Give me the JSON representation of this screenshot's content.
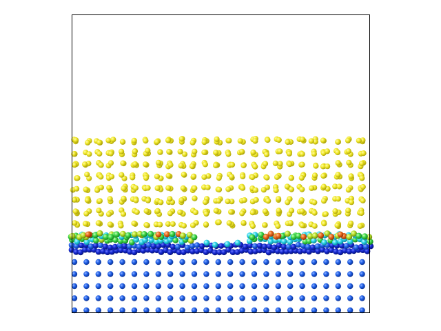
{
  "scene": {
    "description_colors": {
      "background": "#ffffff",
      "frame": "#000000",
      "substrate_atom": "#1a4fd6",
      "interface_dark_blue": "#0b2bd0",
      "interface_cyan": "#22d3e6",
      "interface_green": "#39d84a",
      "interface_orange": "#e8621c",
      "interface_red": "#d8281c",
      "upper_layer_atom": "#e8e21c"
    },
    "layers": {
      "upper_rows": 8,
      "upper_cols": 25,
      "substrate_rows": 5,
      "substrate_cols": 25
    }
  }
}
